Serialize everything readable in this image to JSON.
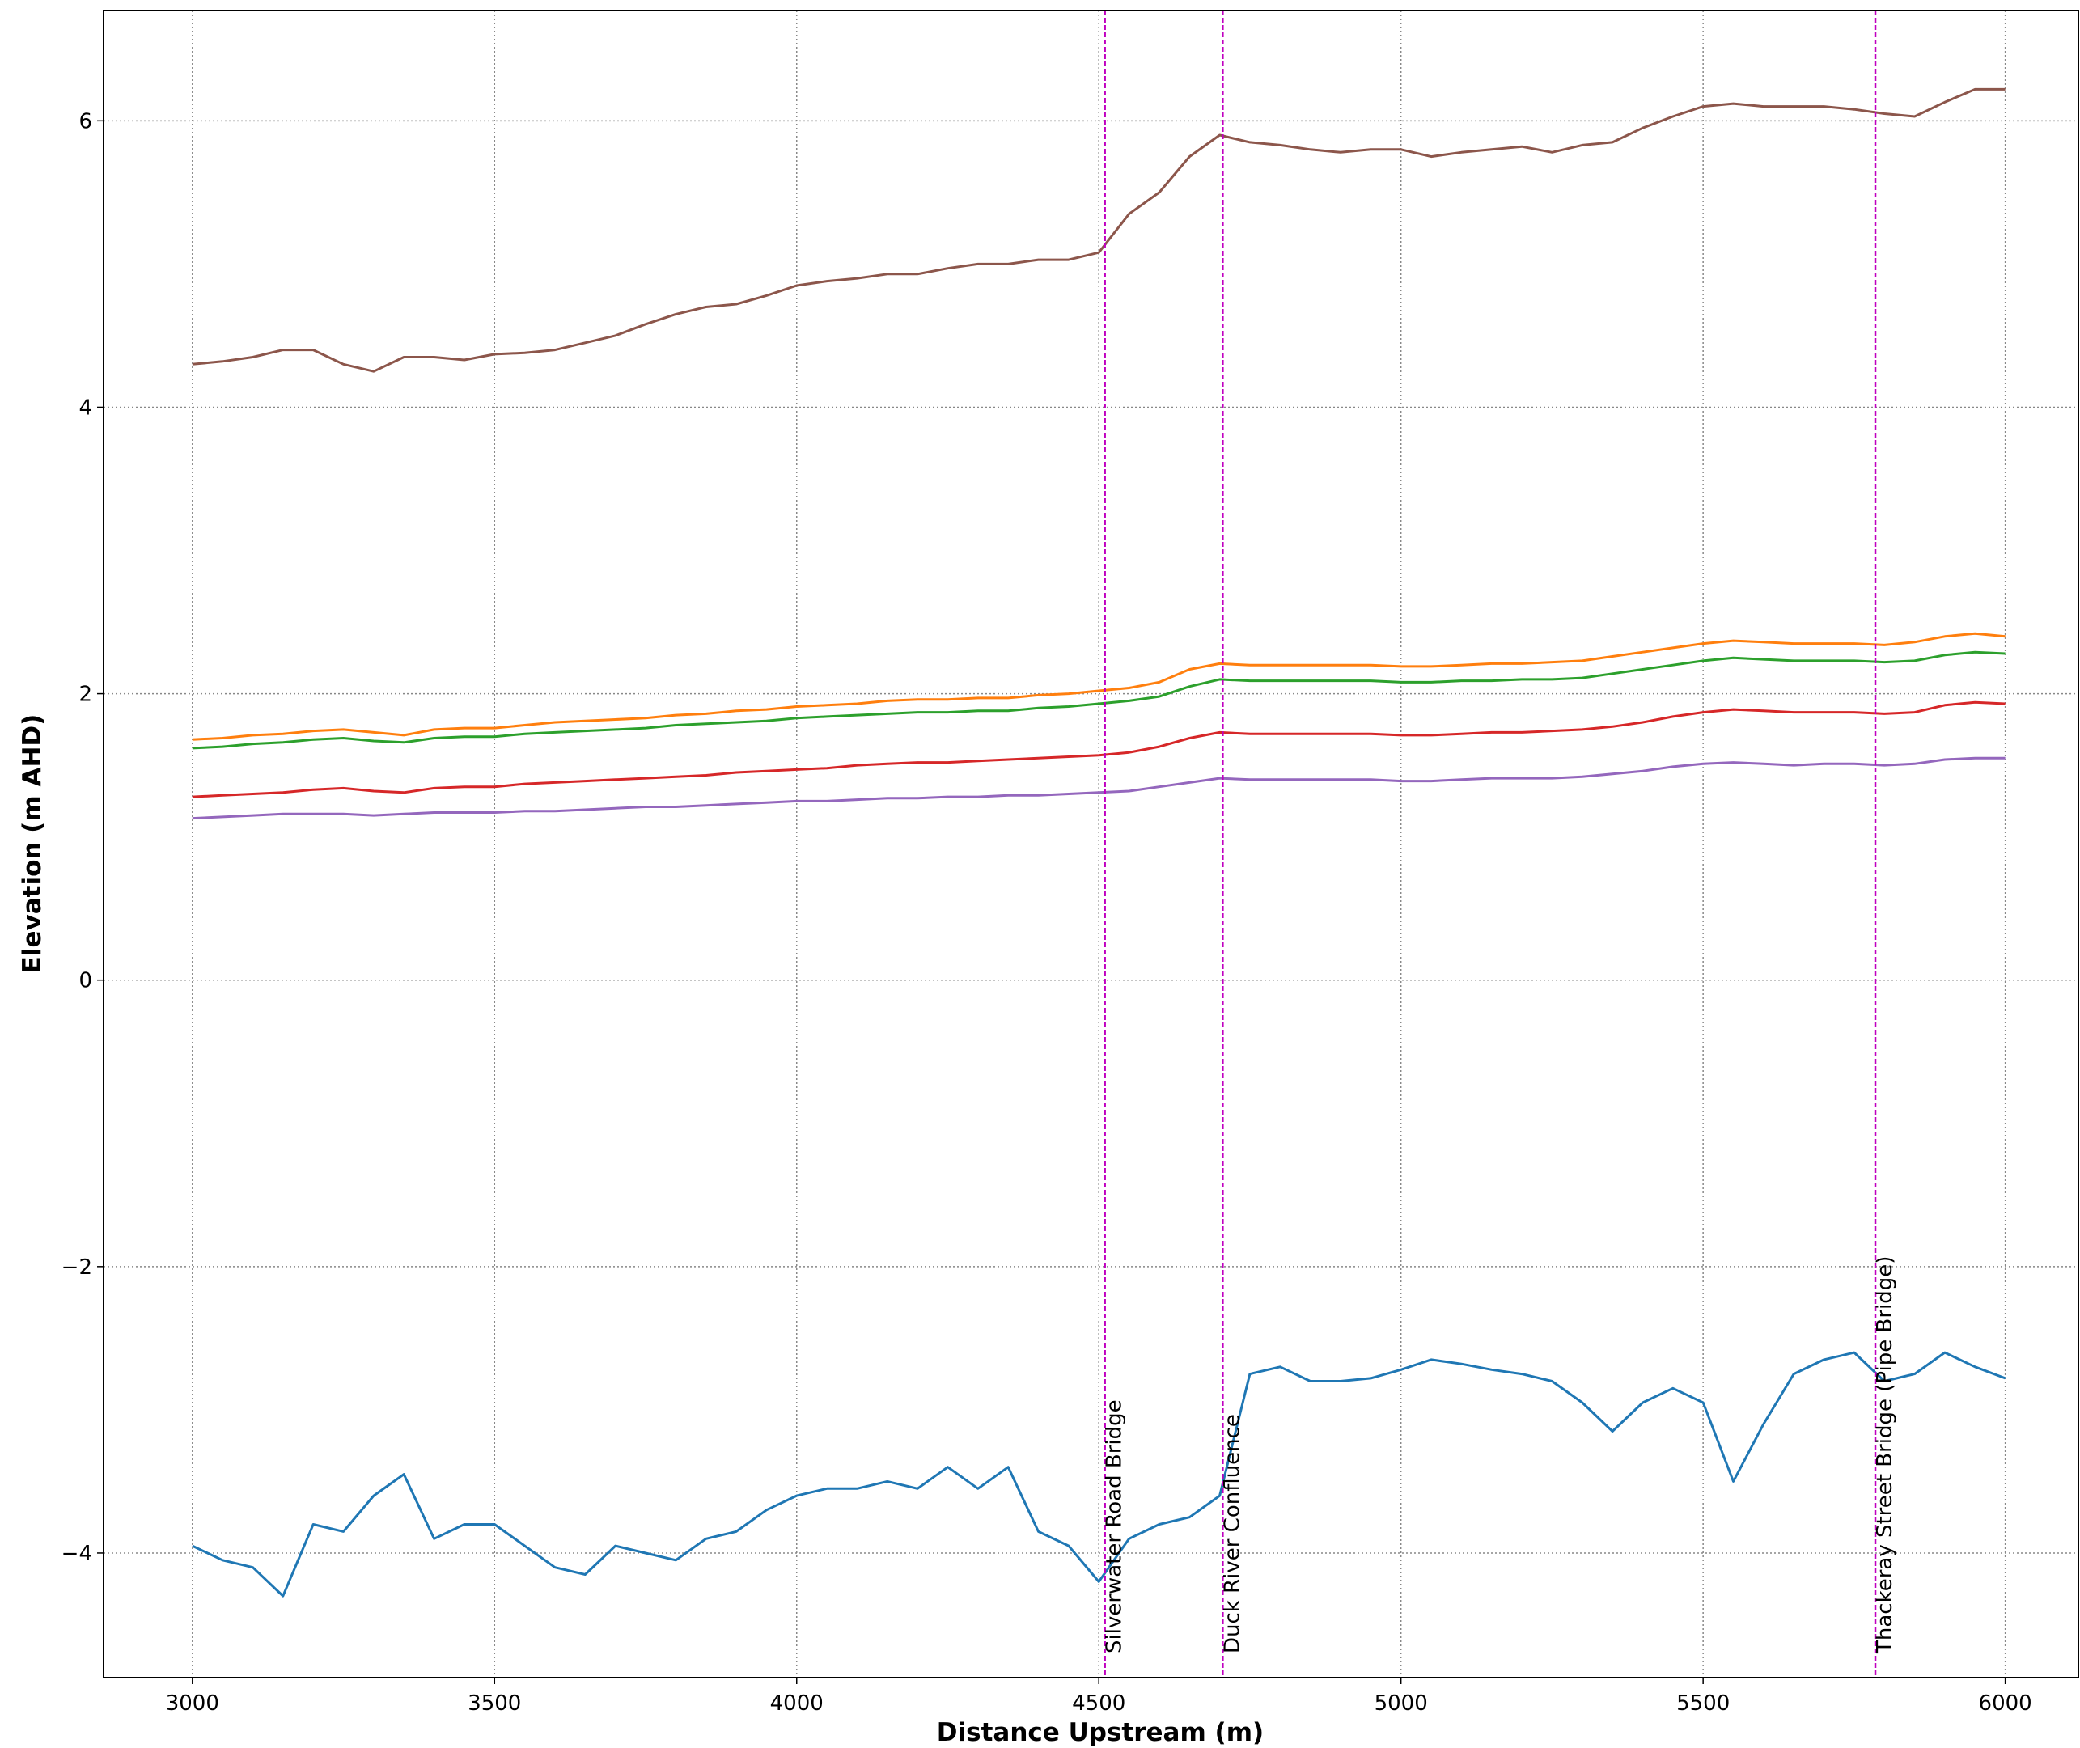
{
  "chart_data": {
    "type": "line",
    "xlabel": "Distance Upstream (m)",
    "ylabel": "Elevation (m AHD)",
    "x": [
      3000,
      3050,
      3100,
      3150,
      3200,
      3250,
      3300,
      3350,
      3400,
      3450,
      3500,
      3550,
      3600,
      3650,
      3700,
      3750,
      3800,
      3850,
      3900,
      3950,
      4000,
      4050,
      4100,
      4150,
      4200,
      4250,
      4300,
      4350,
      4400,
      4450,
      4500,
      4550,
      4600,
      4650,
      4700,
      4750,
      4800,
      4850,
      4900,
      4950,
      5000,
      5050,
      5100,
      5150,
      5200,
      5250,
      5300,
      5350,
      5400,
      5450,
      5500,
      5550,
      5600,
      5650,
      5700,
      5750,
      5800,
      5850,
      5900,
      5950,
      6000
    ],
    "series": [
      {
        "color": "#1f77b4",
        "values": [
          -3.95,
          -4.05,
          -4.1,
          -4.3,
          -3.8,
          -3.85,
          -3.6,
          -3.45,
          -3.9,
          -3.8,
          -3.8,
          -3.95,
          -4.1,
          -4.15,
          -3.95,
          -4.0,
          -4.05,
          -3.9,
          -3.85,
          -3.7,
          -3.6,
          -3.55,
          -3.55,
          -3.5,
          -3.55,
          -3.4,
          -3.55,
          -3.4,
          -3.85,
          -3.95,
          -4.2,
          -3.9,
          -3.8,
          -3.75,
          -3.6,
          -2.75,
          -2.7,
          -2.8,
          -2.8,
          -2.78,
          -2.72,
          -2.65,
          -2.68,
          -2.72,
          -2.75,
          -2.8,
          -2.95,
          -3.15,
          -2.95,
          -2.85,
          -2.95,
          -3.5,
          -3.1,
          -2.75,
          -2.65,
          -2.6,
          -2.8,
          -2.75,
          -2.6,
          -2.7,
          -2.78
        ]
      },
      {
        "color": "#ff7f0e",
        "values": [
          1.68,
          1.69,
          1.71,
          1.72,
          1.74,
          1.75,
          1.73,
          1.71,
          1.75,
          1.76,
          1.76,
          1.78,
          1.8,
          1.81,
          1.82,
          1.83,
          1.85,
          1.86,
          1.88,
          1.89,
          1.91,
          1.92,
          1.93,
          1.95,
          1.96,
          1.96,
          1.97,
          1.97,
          1.99,
          2.0,
          2.02,
          2.04,
          2.08,
          2.17,
          2.21,
          2.2,
          2.2,
          2.2,
          2.2,
          2.2,
          2.19,
          2.19,
          2.2,
          2.21,
          2.21,
          2.22,
          2.23,
          2.26,
          2.29,
          2.32,
          2.35,
          2.37,
          2.36,
          2.35,
          2.35,
          2.35,
          2.34,
          2.36,
          2.4,
          2.42,
          2.4
        ]
      },
      {
        "color": "#2ca02c",
        "values": [
          1.62,
          1.63,
          1.65,
          1.66,
          1.68,
          1.69,
          1.67,
          1.66,
          1.69,
          1.7,
          1.7,
          1.72,
          1.73,
          1.74,
          1.75,
          1.76,
          1.78,
          1.79,
          1.8,
          1.81,
          1.83,
          1.84,
          1.85,
          1.86,
          1.87,
          1.87,
          1.88,
          1.88,
          1.9,
          1.91,
          1.93,
          1.95,
          1.98,
          2.05,
          2.1,
          2.09,
          2.09,
          2.09,
          2.09,
          2.09,
          2.08,
          2.08,
          2.09,
          2.09,
          2.1,
          2.1,
          2.11,
          2.14,
          2.17,
          2.2,
          2.23,
          2.25,
          2.24,
          2.23,
          2.23,
          2.23,
          2.22,
          2.23,
          2.27,
          2.29,
          2.28
        ]
      },
      {
        "color": "#d62728",
        "values": [
          1.28,
          1.29,
          1.3,
          1.31,
          1.33,
          1.34,
          1.32,
          1.31,
          1.34,
          1.35,
          1.35,
          1.37,
          1.38,
          1.39,
          1.4,
          1.41,
          1.42,
          1.43,
          1.45,
          1.46,
          1.47,
          1.48,
          1.5,
          1.51,
          1.52,
          1.52,
          1.53,
          1.54,
          1.55,
          1.56,
          1.57,
          1.59,
          1.63,
          1.69,
          1.73,
          1.72,
          1.72,
          1.72,
          1.72,
          1.72,
          1.71,
          1.71,
          1.72,
          1.73,
          1.73,
          1.74,
          1.75,
          1.77,
          1.8,
          1.84,
          1.87,
          1.89,
          1.88,
          1.87,
          1.87,
          1.87,
          1.86,
          1.87,
          1.92,
          1.94,
          1.93
        ]
      },
      {
        "color": "#9467bd",
        "values": [
          1.13,
          1.14,
          1.15,
          1.16,
          1.16,
          1.16,
          1.15,
          1.16,
          1.17,
          1.17,
          1.17,
          1.18,
          1.18,
          1.19,
          1.2,
          1.21,
          1.21,
          1.22,
          1.23,
          1.24,
          1.25,
          1.25,
          1.26,
          1.27,
          1.27,
          1.28,
          1.28,
          1.29,
          1.29,
          1.3,
          1.31,
          1.32,
          1.35,
          1.38,
          1.41,
          1.4,
          1.4,
          1.4,
          1.4,
          1.4,
          1.39,
          1.39,
          1.4,
          1.41,
          1.41,
          1.41,
          1.42,
          1.44,
          1.46,
          1.49,
          1.51,
          1.52,
          1.51,
          1.5,
          1.51,
          1.51,
          1.5,
          1.51,
          1.54,
          1.55,
          1.55
        ]
      },
      {
        "color": "#8c564b",
        "values": [
          4.3,
          4.32,
          4.35,
          4.4,
          4.4,
          4.3,
          4.25,
          4.35,
          4.35,
          4.33,
          4.37,
          4.38,
          4.4,
          4.45,
          4.5,
          4.58,
          4.65,
          4.7,
          4.72,
          4.78,
          4.85,
          4.88,
          4.9,
          4.93,
          4.93,
          4.97,
          5.0,
          5.0,
          5.03,
          5.03,
          5.08,
          5.35,
          5.5,
          5.75,
          5.9,
          5.85,
          5.83,
          5.8,
          5.78,
          5.8,
          5.8,
          5.75,
          5.78,
          5.8,
          5.82,
          5.78,
          5.83,
          5.85,
          5.95,
          6.03,
          6.1,
          6.12,
          6.1,
          6.1,
          6.1,
          6.08,
          6.05,
          6.03,
          6.13,
          6.22,
          6.22
        ]
      }
    ],
    "annotations": [
      {
        "x": 4510,
        "text": "Silverwater Road Bridge"
      },
      {
        "x": 4705,
        "text": "Duck River Confluence"
      },
      {
        "x": 5785,
        "text": "Thackeray Street Bridge (Pipe Bridge)"
      }
    ],
    "annotation_color": "#c000c0",
    "xlim": [
      2853,
      6121
    ],
    "ylim": [
      -4.87,
      6.77
    ],
    "xticks": [
      3000,
      3500,
      4000,
      4500,
      5000,
      5500,
      6000
    ],
    "yticks": [
      {
        "value": -4,
        "label": "−4"
      },
      {
        "value": -2,
        "label": "−2"
      },
      0,
      2,
      4,
      6
    ],
    "grid": true
  }
}
